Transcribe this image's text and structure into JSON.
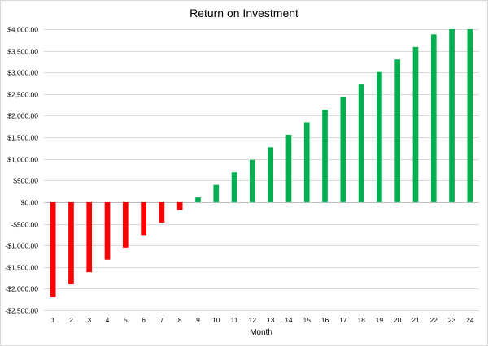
{
  "chart_data": {
    "type": "bar",
    "title": "Return on Investment",
    "xlabel": "Month",
    "ylabel": "",
    "categories": [
      "1",
      "2",
      "3",
      "4",
      "5",
      "6",
      "7",
      "8",
      "9",
      "10",
      "11",
      "12",
      "13",
      "14",
      "15",
      "16",
      "17",
      "18",
      "19",
      "20",
      "21",
      "22",
      "23",
      "24"
    ],
    "values": [
      -2200,
      -1900,
      -1620,
      -1330,
      -1050,
      -760,
      -470,
      -180,
      110,
      400,
      690,
      980,
      1270,
      1560,
      1850,
      2140,
      2430,
      2720,
      3010,
      3300,
      3590,
      3880,
      4000,
      4000
    ],
    "ylim": [
      -2500,
      4000
    ],
    "ytick_values": [
      -2500,
      -2000,
      -1500,
      -1000,
      -500,
      0,
      500,
      1000,
      1500,
      2000,
      2500,
      3000,
      3500,
      4000
    ],
    "ytick_labels": [
      "-$2,500.00",
      "-$2,000.00",
      "-$1,500.00",
      "-$1,000.00",
      "-$500.00",
      "$0.00",
      "$500.00",
      "$1,000.00",
      "$1,500.00",
      "$2,000.00",
      "$2,500.00",
      "$3,000.00",
      "$3,500.00",
      "$4,000.00"
    ],
    "grid": true,
    "legend": "none",
    "colors": {
      "negative": "#ff0000",
      "positive": "#00b050"
    }
  }
}
